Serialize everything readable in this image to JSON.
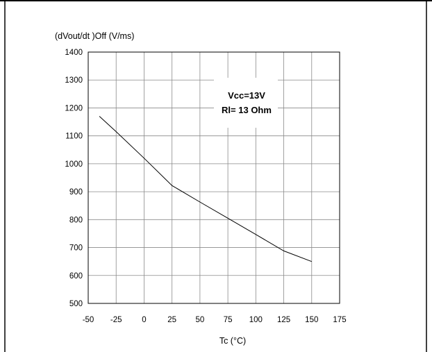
{
  "chart_data": {
    "type": "line",
    "title": "",
    "ylabel": "(dVout/dt )Off (V/ms)",
    "xlabel": "Tc (°C)",
    "xlim": [
      -50,
      175
    ],
    "ylim": [
      500,
      1400
    ],
    "x_ticks": [
      "-50",
      "-25",
      "0",
      "25",
      "50",
      "75",
      "100",
      "125",
      "150",
      "175"
    ],
    "y_ticks": [
      "500",
      "600",
      "700",
      "800",
      "900",
      "1000",
      "1100",
      "1200",
      "1300",
      "1400"
    ],
    "grid": true,
    "series": [
      {
        "x": [
          -40,
          -25,
          0,
          25,
          50,
          75,
          100,
          125,
          150
        ],
        "y": [
          1170,
          1115,
          1020,
          922,
          863,
          805,
          747,
          688,
          650
        ]
      }
    ],
    "annotations": [
      "Vcc=13V",
      "Rl= 13 Ohm"
    ]
  }
}
